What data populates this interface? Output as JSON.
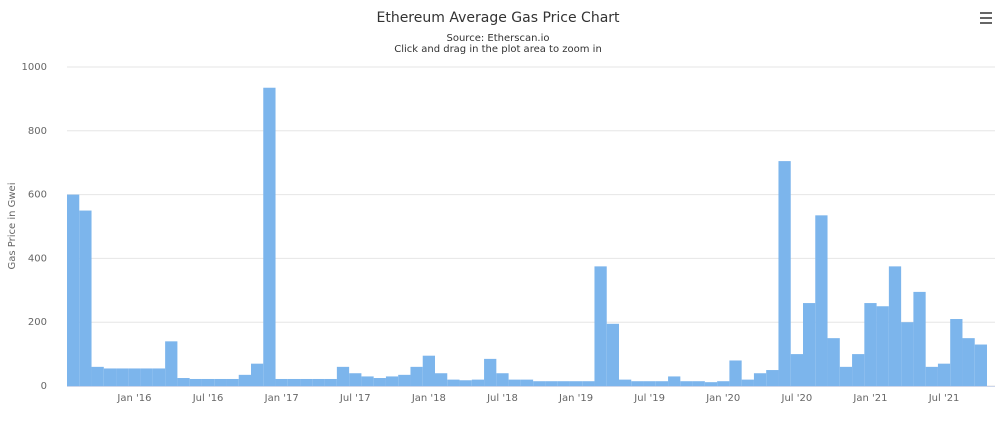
{
  "chart_data": {
    "type": "bar",
    "title": "Ethereum Average Gas Price Chart",
    "subtitle": [
      "Source: Etherscan.io",
      "Click and drag in the plot area to zoom in"
    ],
    "y_label": "Gas Price in Gwei",
    "categories": [
      null,
      null,
      null,
      null,
      null,
      "Jan '16",
      null,
      null,
      null,
      null,
      null,
      "Jul '16",
      null,
      null,
      null,
      null,
      null,
      "Jan '17",
      null,
      null,
      null,
      null,
      null,
      "Jul '17",
      null,
      null,
      null,
      null,
      null,
      "Jan '18",
      null,
      null,
      null,
      null,
      null,
      "Jul '18",
      null,
      null,
      null,
      null,
      null,
      "Jan '19",
      null,
      null,
      null,
      null,
      null,
      "Jul '19",
      null,
      null,
      null,
      null,
      null,
      "Jan '20",
      null,
      null,
      null,
      null,
      null,
      "Jul '20",
      null,
      null,
      null,
      null,
      null,
      "Jan '21",
      null,
      null,
      null,
      null,
      null,
      "Jul '21",
      null,
      null,
      null
    ],
    "values": [
      600,
      550,
      60,
      55,
      55,
      55,
      55,
      55,
      140,
      25,
      22,
      22,
      22,
      22,
      35,
      70,
      935,
      22,
      22,
      22,
      22,
      22,
      60,
      40,
      30,
      25,
      30,
      35,
      60,
      95,
      40,
      20,
      18,
      20,
      85,
      40,
      20,
      20,
      15,
      15,
      15,
      15,
      15,
      375,
      195,
      20,
      15,
      15,
      15,
      30,
      15,
      15,
      12,
      15,
      80,
      20,
      40,
      50,
      705,
      100,
      260,
      535,
      150,
      60,
      100,
      260,
      250,
      375,
      200,
      295,
      60,
      70,
      210,
      150,
      130
    ],
    "color": "#7cb5ec",
    "ylim": [
      0,
      1000
    ],
    "yticks": [
      0,
      200,
      400,
      600,
      800,
      1000
    ],
    "grid": true
  }
}
